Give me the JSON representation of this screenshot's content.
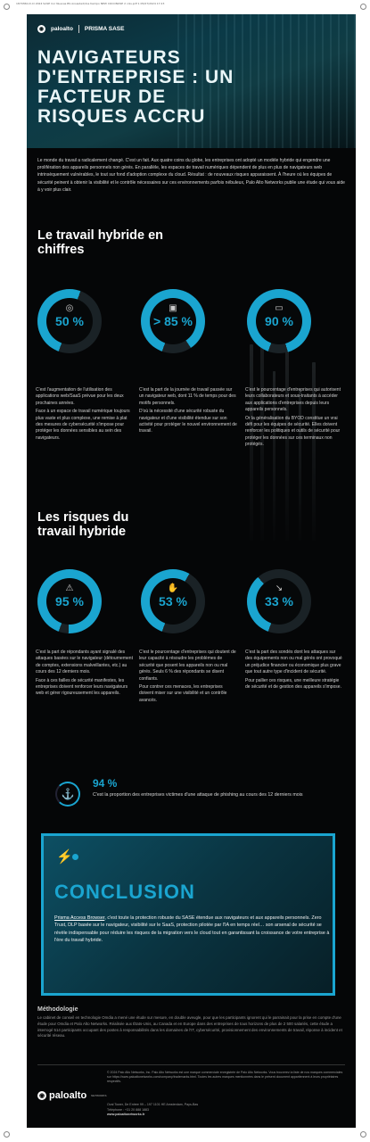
{
  "print_header": "1870360-D-Cl 2024 SASE Cor Nuevas BS Ansiedad/dos tiempo NEW COCONOSE 2 cols.pdf  1  05/07/2024  17:23",
  "brand": {
    "name": "paloalto",
    "suffix": "NETWORKS",
    "product": "PRISMA SASE",
    "accent": "#1aa5d0"
  },
  "hero": {
    "title": "NAVIGATEURS D'ENTREPRISE : UN FACTEUR DE RISQUES ACCRU"
  },
  "intro": "Le monde du travail a radicalement changé. C'est un fait. Aux quatre coins du globe, les entreprises ont adopté un modèle hybride qui engendre une prolifération des appareils personnels non gérés. En parallèle, les espaces de travail numériques dépendent de plus en plus de navigateurs web intrinsèquement vulnérables, le tout sur fond d'adoption complexe du cloud. Résultat : de nouveaux risques apparaissent. À l'heure où les équipes de sécurité peinent à obtenir la visibilité et le contrôle nécessaires sur ces environnements parfois nébuleux, Palo Alto Networks publie une étude qui vous aide à y voir plus clair.",
  "section1": {
    "title": "Le travail hybride en chiffres",
    "stats": [
      {
        "value": "50 %",
        "pct": 50,
        "icon": "target-icon",
        "glyph": "◎",
        "paragraphs": [
          "C'est l'augmentation de l'utilisation des applications web/SaaS prévue pour les deux prochaines années.",
          "Face à un espace de travail numérique toujours plus vaste et plus complexe, une remise à plat des mesures de cybersécurité s'impose pour protéger les données sensibles au sein des navigateurs."
        ]
      },
      {
        "value": "> 85 %",
        "pct": 85,
        "icon": "browser-window-icon",
        "glyph": "▣",
        "paragraphs": [
          "C'est la part de la journée de travail passée sur un navigateur web, dont 11 % de temps pour des motifs personnels.",
          "D'où la nécessité d'une sécurité robuste du navigateur et d'une visibilité étendue sur son activité pour protéger le nouvel environnement de travail."
        ]
      },
      {
        "value": "90 %",
        "pct": 90,
        "icon": "devices-icon",
        "glyph": "▭",
        "paragraphs": [
          "C'est le pourcentage d'entreprises qui autorisent leurs collaborateurs et sous-traitants à accéder aux applications d'entreprises depuis leurs appareils personnels.",
          "Or la généralisation du BYOD constitue un vrai défi pour les équipes de sécurité. Elles doivent renforcer les politiques et outils de sécurité pour protéger les données sur ces terminaux non protégés."
        ]
      }
    ]
  },
  "section2": {
    "title": "Les risques du travail hybride",
    "stats": [
      {
        "value": "95 %",
        "pct": 95,
        "icon": "alert-document-icon",
        "glyph": "⚠",
        "paragraphs": [
          "C'est la part de répondants ayant signalé des attaques basées sur le navigateur (détournement de comptes, extensions malveillantes, etc.) au cours des 12 derniers mois.",
          "Face à ces failles de sécurité manifestes, les entreprises doivent renforcer leurs navigateurs web et gérer rigoureusement les appareils."
        ]
      },
      {
        "value": "53 %",
        "pct": 53,
        "icon": "thumbs-down-icon",
        "glyph": "✋",
        "paragraphs": [
          "C'est le pourcentage d'entreprises qui doutent de leur capacité à résoudre les problèmes de sécurité que posent les appareils non ou mal gérés. Seuls 6 % des répondants se disent confiants.",
          "Pour contrer ces menaces, les entreprises doivent miser sur une visibilité et un contrôle avancés."
        ]
      },
      {
        "value": "33 %",
        "pct": 33,
        "icon": "chart-down-icon",
        "glyph": "↘",
        "paragraphs": [
          "C'est la part des sondés dont les attaques sur des équipements non ou mal gérés ont provoqué un préjudice financier ou économique plus grave que tout autre type d'incident de sécurité.",
          "Pour pallier ces risques, une meilleure stratégie de sécurité et de gestion des appareils s'impose."
        ]
      }
    ]
  },
  "phishing": {
    "value": "94 %",
    "text": "C'est la proportion des entreprises victimes d'une attaque de phishing au cours des 12 derniers mois",
    "icon": "fishing-hook-icon"
  },
  "conclusion": {
    "title": "CONCLUSION",
    "link": "Prisma Access Browser",
    "text": ", c'est toute la protection robuste du SASE étendue aux navigateurs et aux appareils personnels. Zero Trust, DLP basée sur le navigateur, visibilité sur le SaaS, protection pilotée par l'IA en temps réel… son arsenal de sécurité se révèle indispensable pour réduire les risques de la migration vers le cloud tout en garantissant la croissance de votre entreprise à l'ère du travail hybride."
  },
  "methodology": {
    "title": "Méthodologie",
    "text": "Le cabinet de conseil en technologie Omdia a mené une étude sur mesure, en double aveugle, pour que les participants ignorent qui le parrainait pour la prise en compte d'une étude pour Omdia et Palo Alto Networks. Réalisée aux États-Unis, au Canada et en Europe dans des entreprises de tous horizons de plus de 2 500 salariés, cette étude a interrogé 514 participants occupant des postes à responsabilités dans les domaines de l'IT, cybersécurité, provisionnement des environnements de travail, réponse à incident et sécurité réseau."
  },
  "footer": {
    "legal": "© 2024 Palo Alto Networks, Inc. Palo Alto Networks est une marque commerciale enregistrée de Palo Alto Networks. Vous trouverez la liste de nos marques commerciales sur https://www.paloaltonetworks.com/company/trademarks.html. Toutes les autres marques mentionnées dans le présent document appartiennent à leurs propriétaires respectifs.",
    "address": "Oval Tower, De Entree 99 – 197 1101 HE Amsterdam, Pays-Bas",
    "phone": "Téléphone : +31 20 888 1883",
    "website": "www.paloaltonetworks.fr"
  }
}
